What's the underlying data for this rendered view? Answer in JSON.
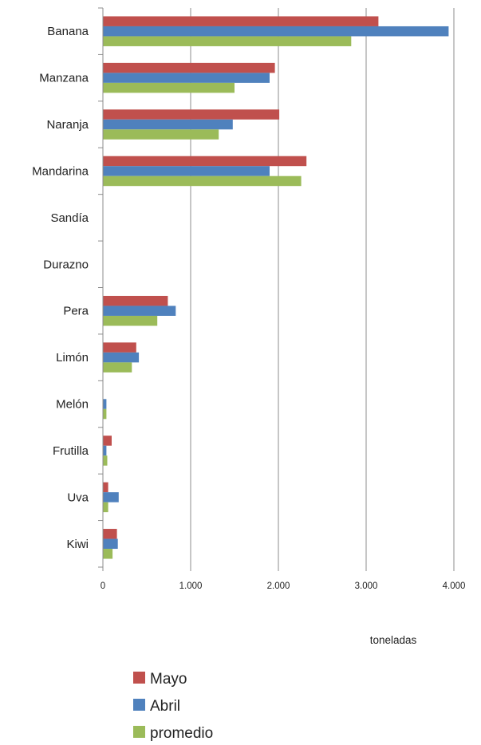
{
  "chart_data": {
    "type": "bar",
    "orientation": "horizontal",
    "categories": [
      "Banana",
      "Manzana",
      "Naranja",
      "Mandarina",
      "Sandía",
      "Durazno",
      "Pera",
      "Limón",
      "Melón",
      "Frutilla",
      "Uva",
      "Kiwi"
    ],
    "series": [
      {
        "name": "Mayo",
        "color": "#c0504d",
        "values": [
          3140,
          1960,
          2010,
          2320,
          0,
          0,
          740,
          380,
          0,
          100,
          60,
          160
        ]
      },
      {
        "name": "Abril",
        "color": "#4f81bd",
        "values": [
          3940,
          1900,
          1480,
          1900,
          0,
          0,
          830,
          410,
          40,
          40,
          180,
          170
        ]
      },
      {
        "name": "promedio",
        "color": "#9bbb59",
        "values": [
          2830,
          1500,
          1320,
          2260,
          0,
          0,
          620,
          330,
          40,
          50,
          60,
          110
        ]
      }
    ],
    "xlabel": "toneladas",
    "xlim": [
      0,
      4000
    ],
    "xticks": [
      0,
      1000,
      2000,
      3000,
      4000
    ],
    "xtick_labels": [
      "0",
      "1.000",
      "2.000",
      "3.000",
      "4.000"
    ],
    "grid": "vertical",
    "legend_position": "bottom"
  }
}
